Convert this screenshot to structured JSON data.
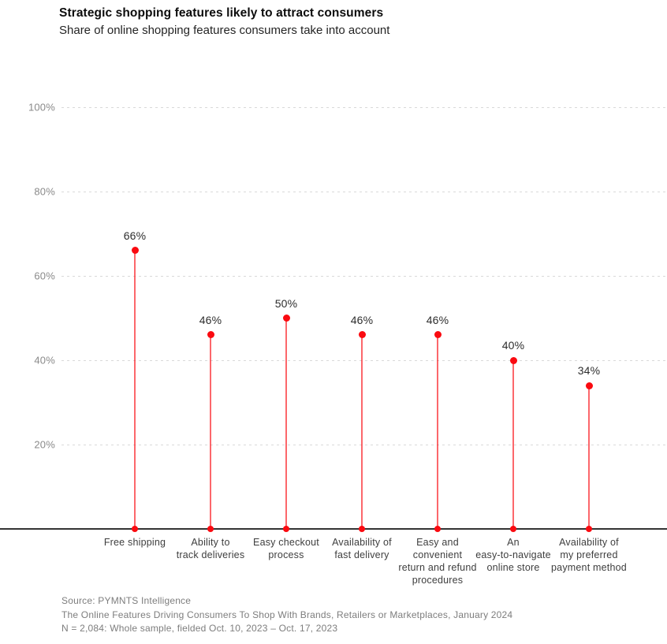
{
  "header": {
    "title": "Strategic shopping features likely to attract consumers",
    "subtitle": "Share of online shopping features consumers take into account"
  },
  "chart_data": {
    "type": "lollipop",
    "title": "Strategic shopping features likely to attract consumers",
    "subtitle": "Share of online shopping features consumers take into account",
    "categories": [
      "Free shipping",
      "Ability to track deliveries",
      "Easy checkout process",
      "Availability of fast delivery",
      "Easy and convenient return and refund procedures",
      "An easy-to-navigate online store",
      "Availability of my preferred payment method"
    ],
    "category_lines": [
      [
        "Free shipping"
      ],
      [
        "Ability to",
        "track deliveries"
      ],
      [
        "Easy checkout",
        "process"
      ],
      [
        "Availability of",
        "fast delivery"
      ],
      [
        "Easy and",
        "convenient",
        "return and refund",
        "procedures"
      ],
      [
        "An",
        "easy-to-navigate",
        "online store"
      ],
      [
        "Availability of",
        "my preferred",
        "payment method"
      ]
    ],
    "values": [
      66,
      46,
      50,
      46,
      46,
      40,
      34
    ],
    "value_labels": [
      "66%",
      "46%",
      "50%",
      "46%",
      "46%",
      "40%",
      "34%"
    ],
    "y_ticks": [
      {
        "value": 100,
        "label": "100%"
      },
      {
        "value": 80,
        "label": "80%"
      },
      {
        "value": 60,
        "label": "60%"
      },
      {
        "value": 40,
        "label": "40%"
      },
      {
        "value": 20,
        "label": "20%"
      }
    ],
    "ylim": [
      0,
      100
    ],
    "grid": "horizontal-dashed",
    "legend": "none",
    "xlabel": "",
    "ylabel": "",
    "colors": {
      "accent": "#fa0a10",
      "stem": "rgba(250,10,16,0.62)",
      "axis": "#333333",
      "grid": "#d9d9d9"
    }
  },
  "footer": {
    "source": "Source: PYMNTS Intelligence",
    "report": "The Online Features Driving Consumers To Shop With Brands, Retailers or Marketplaces, January 2024",
    "sample": "N = 2,084: Whole sample, fielded Oct. 10, 2023 – Oct. 17, 2023"
  }
}
